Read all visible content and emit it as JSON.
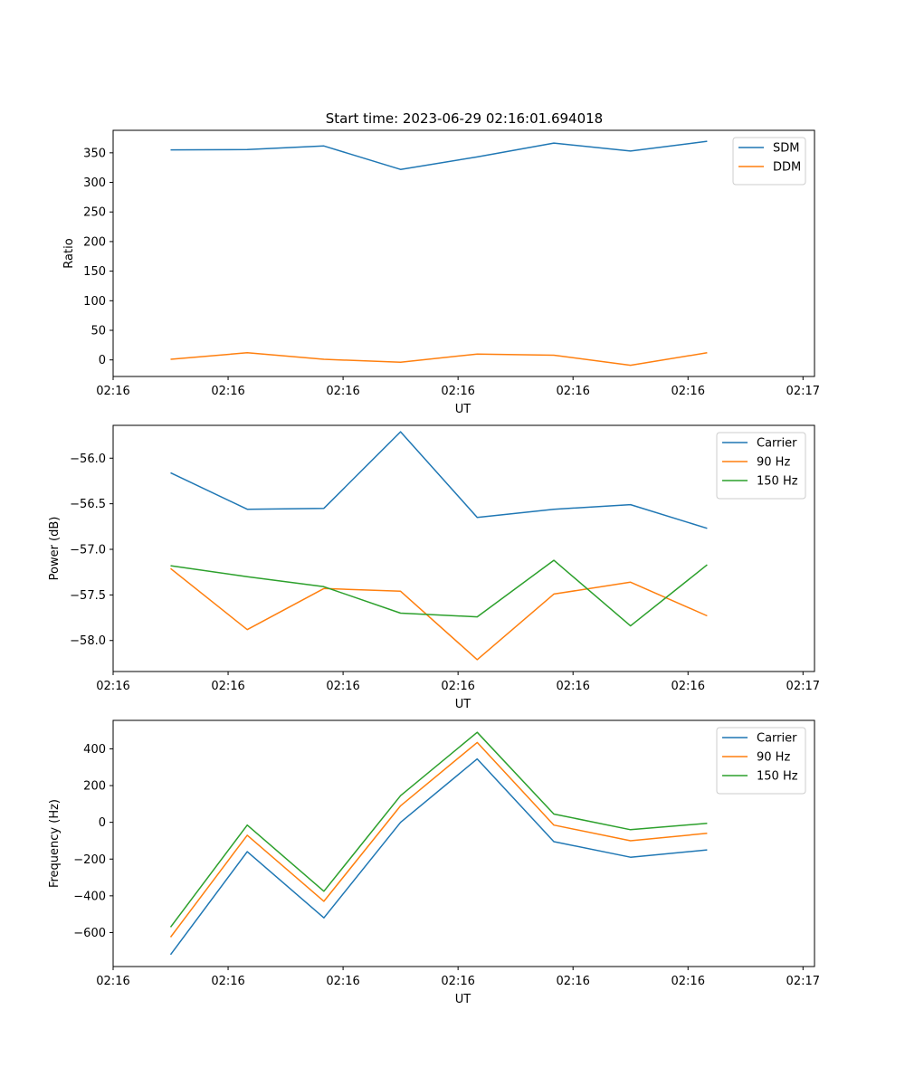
{
  "figure_title": "Start time: 2023-06-29 02:16:01.694018",
  "x_tick_labels": [
    "02:16",
    "02:16",
    "02:16",
    "02:16",
    "02:16",
    "02:16",
    "02:16"
  ],
  "chart_data": [
    {
      "type": "line",
      "title": "Start time: 2023-06-29 02:16:01.694018",
      "xlabel": "UT",
      "ylabel": "Ratio",
      "x": [
        1,
        2,
        3,
        4,
        5,
        6,
        7,
        8
      ],
      "xlim": [
        0.25,
        9.4
      ],
      "ylim": [
        -28,
        388
      ],
      "y_ticks": [
        0,
        50,
        100,
        150,
        200,
        250,
        300,
        350
      ],
      "y_tick_labels": [
        "0",
        "50",
        "100",
        "150",
        "200",
        "250",
        "300",
        "350"
      ],
      "x_ticks": [
        0.25,
        1.75,
        3.25,
        4.75,
        6.25,
        7.75,
        9.25
      ],
      "x_tick_labels": [
        "02:16",
        "02:16",
        "02:16",
        "02:16",
        "02:16",
        "02:16",
        "02:17"
      ],
      "legend_position": "upper right",
      "series": [
        {
          "name": "SDM",
          "color": "#1f77b4",
          "values": [
            355,
            355.5,
            361.5,
            322,
            343,
            366.5,
            353,
            369.5
          ]
        },
        {
          "name": "DDM",
          "color": "#ff7f0e",
          "values": [
            1,
            12,
            1,
            -4,
            10,
            8,
            -9,
            12
          ]
        }
      ]
    },
    {
      "type": "line",
      "title": "",
      "xlabel": "UT",
      "ylabel": "Power (dB)",
      "x": [
        1,
        2,
        3,
        4,
        5,
        6,
        7,
        8
      ],
      "xlim": [
        0.25,
        9.4
      ],
      "ylim": [
        -58.34,
        -55.64
      ],
      "y_ticks": [
        -58.0,
        -57.5,
        -57.0,
        -56.5,
        -56.0
      ],
      "y_tick_labels": [
        "−58.0",
        "−57.5",
        "−57.0",
        "−56.5",
        "−56.0"
      ],
      "x_ticks": [
        0.25,
        1.75,
        3.25,
        4.75,
        6.25,
        7.75,
        9.25
      ],
      "x_tick_labels": [
        "02:16",
        "02:16",
        "02:16",
        "02:16",
        "02:16",
        "02:16",
        "02:17"
      ],
      "legend_position": "upper right",
      "series": [
        {
          "name": "Carrier",
          "color": "#1f77b4",
          "values": [
            -56.16,
            -56.56,
            -56.55,
            -55.71,
            -56.65,
            -56.56,
            -56.51,
            -56.77
          ]
        },
        {
          "name": "90 Hz",
          "color": "#ff7f0e",
          "values": [
            -57.21,
            -57.88,
            -57.43,
            -57.46,
            -58.21,
            -57.49,
            -57.36,
            -57.73
          ]
        },
        {
          "name": "150 Hz",
          "color": "#2ca02c",
          "values": [
            -57.18,
            -57.3,
            -57.41,
            -57.7,
            -57.74,
            -57.12,
            -57.84,
            -57.17
          ]
        }
      ]
    },
    {
      "type": "line",
      "title": "",
      "xlabel": "UT",
      "ylabel": "Frequency (Hz)",
      "x": [
        1,
        2,
        3,
        4,
        5,
        6,
        7,
        8
      ],
      "xlim": [
        0.25,
        9.4
      ],
      "ylim": [
        -785,
        555
      ],
      "y_ticks": [
        -600,
        -400,
        -200,
        0,
        200,
        400
      ],
      "y_tick_labels": [
        "−600",
        "−400",
        "−200",
        "0",
        "200",
        "400"
      ],
      "x_ticks": [
        0.25,
        1.75,
        3.25,
        4.75,
        6.25,
        7.75,
        9.25
      ],
      "x_tick_labels": [
        "02:16",
        "02:16",
        "02:16",
        "02:16",
        "02:16",
        "02:16",
        "02:17"
      ],
      "legend_position": "upper right",
      "series": [
        {
          "name": "Carrier",
          "color": "#1f77b4",
          "values": [
            -720,
            -160,
            -520,
            0,
            345,
            -105,
            -190,
            -150
          ]
        },
        {
          "name": "90 Hz",
          "color": "#ff7f0e",
          "values": [
            -625,
            -70,
            -430,
            90,
            435,
            -15,
            -100,
            -60
          ]
        },
        {
          "name": "150 Hz",
          "color": "#2ca02c",
          "values": [
            -570,
            -15,
            -375,
            145,
            490,
            45,
            -40,
            -5
          ]
        }
      ]
    }
  ]
}
